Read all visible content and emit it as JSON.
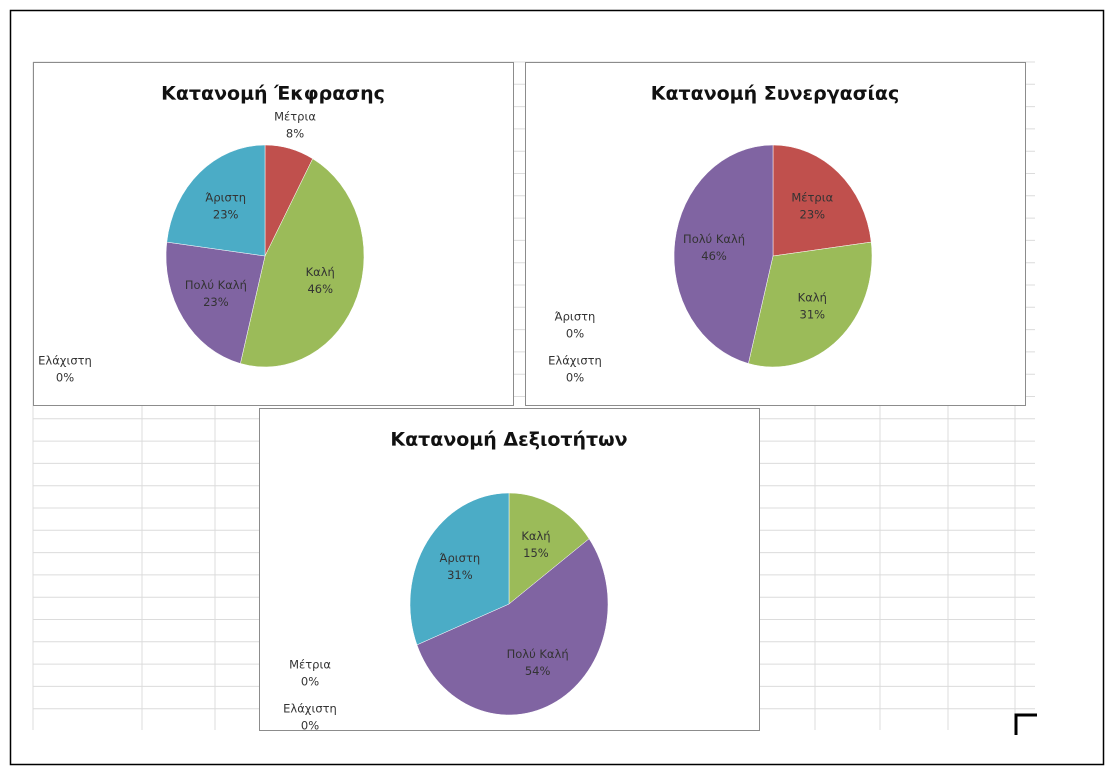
{
  "chart_data": [
    {
      "type": "pie",
      "title": "Κατανομή Έκφρασης",
      "categories": [
        "Ελάχιστη",
        "Μέτρια",
        "Καλή",
        "Πολύ Καλή",
        "Άριστη"
      ],
      "values": [
        0,
        8,
        46,
        23,
        23
      ],
      "value_labels": [
        "0%",
        "8%",
        "46%",
        "23%",
        "23%"
      ],
      "colors": [
        "#4f81bd",
        "#c0504d",
        "#9bbb59",
        "#8064a2",
        "#4bacc6"
      ]
    },
    {
      "type": "pie",
      "title": "Κατανομή Συνεργασίας",
      "categories": [
        "Ελάχιστη",
        "Μέτρια",
        "Καλή",
        "Πολύ Καλή",
        "Άριστη"
      ],
      "values": [
        0,
        23,
        31,
        46,
        0
      ],
      "value_labels": [
        "0%",
        "23%",
        "31%",
        "46%",
        "0%"
      ],
      "colors": [
        "#4f81bd",
        "#c0504d",
        "#9bbb59",
        "#8064a2",
        "#4bacc6"
      ]
    },
    {
      "type": "pie",
      "title": "Κατανομή Δεξιοτήτων",
      "categories": [
        "Ελάχιστη",
        "Μέτρια",
        "Καλή",
        "Πολύ Καλή",
        "Άριστη"
      ],
      "values": [
        0,
        0,
        15,
        54,
        31
      ],
      "value_labels": [
        "0%",
        "0%",
        "15%",
        "54%",
        "31%"
      ],
      "colors": [
        "#4f81bd",
        "#c0504d",
        "#9bbb59",
        "#8064a2",
        "#4bacc6"
      ]
    }
  ]
}
